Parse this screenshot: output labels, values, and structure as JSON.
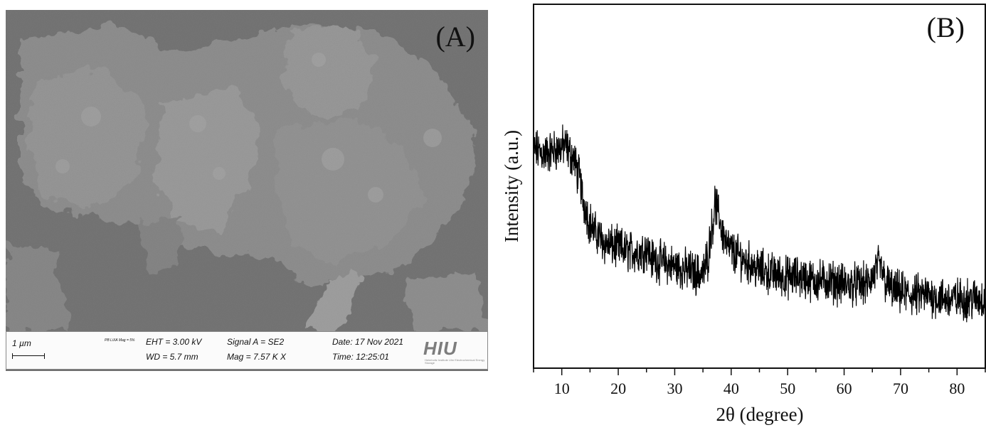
{
  "panel_a": {
    "label": "(A)",
    "info_bar": {
      "scale": "1 µm",
      "small_text": "PB LiXA Mag = 5%",
      "eht": "EHT = 3.00 kV",
      "wd": "WD = 5.7 mm",
      "signal": "Signal A = SE2",
      "mag": "Mag = 7.57 K X",
      "date": "Date: 17 Nov 2021",
      "time": "Time: 12:25:01",
      "logo": "HIU",
      "logo_sub": "Helmholtz Institute Ulm Electrochemical Energy Storage"
    }
  },
  "chart_data": {
    "type": "line",
    "label": "(B)",
    "title": "",
    "xlabel": "2θ (degree)",
    "ylabel": "Intensity (a.u.)",
    "xlim": [
      5,
      85
    ],
    "ylim": [
      0,
      100
    ],
    "xticks": [
      10,
      20,
      30,
      40,
      50,
      60,
      70,
      80
    ],
    "yticks_shown": false,
    "grid": false,
    "series": [
      {
        "color": "#000000",
        "x": [
          5,
          7,
          9,
          10.5,
          12,
          13,
          14,
          15,
          16,
          18,
          20,
          22,
          24,
          25,
          26,
          28,
          30,
          32,
          34,
          35,
          35.8,
          36.5,
          37.2,
          37.8,
          38.5,
          39.5,
          41,
          43,
          45,
          47,
          50,
          52,
          55,
          57,
          60,
          62,
          64,
          65,
          66,
          66.6,
          67.5,
          69,
          72,
          75,
          78,
          80,
          83,
          85
        ],
        "y": [
          60,
          59,
          60,
          61,
          58,
          53,
          45,
          40,
          37,
          34,
          33,
          32,
          32,
          33,
          30,
          29,
          28,
          27,
          26,
          26,
          30,
          38,
          45,
          42,
          37,
          33,
          31,
          29,
          27,
          26,
          25,
          25,
          24,
          24,
          23,
          23,
          23,
          25,
          28,
          27,
          23,
          21,
          20,
          20,
          19,
          19,
          19,
          19
        ]
      }
    ]
  }
}
